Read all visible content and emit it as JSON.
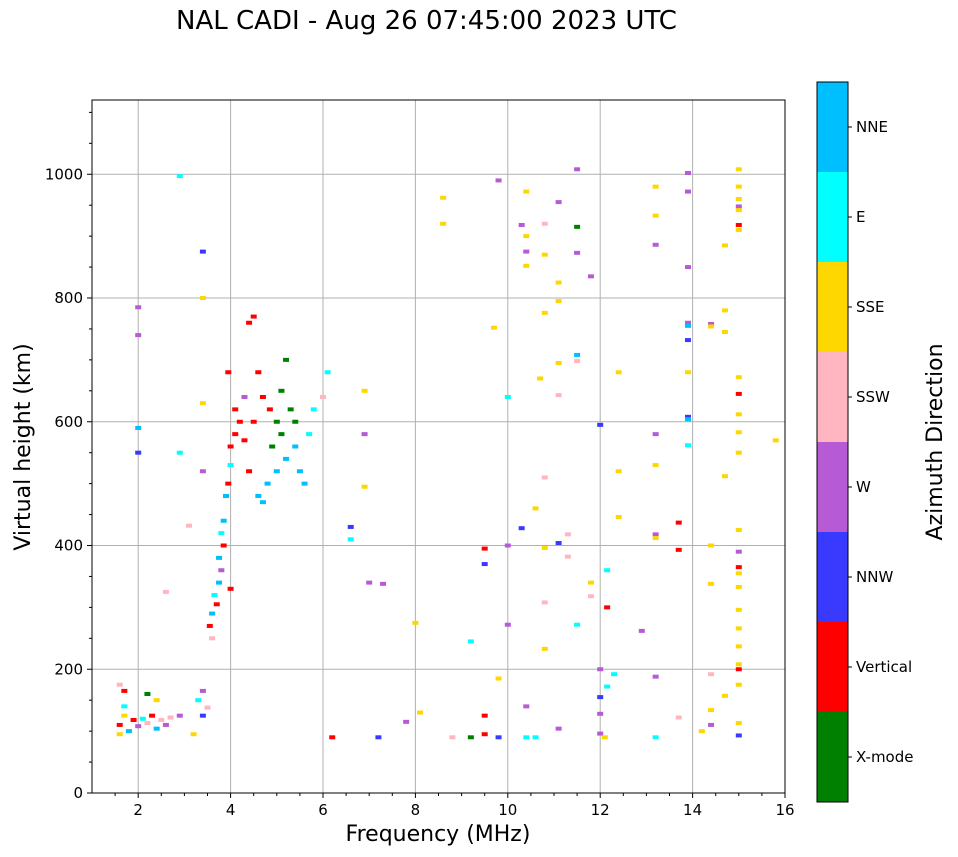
{
  "page_title": "NAL CADI - Aug 26 07:45:00 2023 UTC",
  "chart_data": {
    "type": "scatter",
    "title": "NAL CADI - Aug 26 07:45:00 2023 UTC",
    "xlabel": "Frequency (MHz)",
    "ylabel": "Virtual height (km)",
    "xlim": [
      1,
      16
    ],
    "ylim": [
      0,
      1120
    ],
    "xticks": [
      2,
      4,
      6,
      8,
      10,
      12,
      14,
      16
    ],
    "yticks": [
      0,
      200,
      400,
      600,
      800,
      1000
    ],
    "grid": true,
    "colorbar": {
      "label": "Azimuth Direction",
      "categories": [
        {
          "name": "X-mode",
          "color": "#008000"
        },
        {
          "name": "Vertical",
          "color": "#ff0000"
        },
        {
          "name": "NNW",
          "color": "#3a3aff"
        },
        {
          "name": "W",
          "color": "#b65ad6"
        },
        {
          "name": "SSW",
          "color": "#ffb6c1"
        },
        {
          "name": "SSE",
          "color": "#ffd700"
        },
        {
          "name": "E",
          "color": "#00ffff"
        },
        {
          "name": "NNE",
          "color": "#00bfff"
        }
      ]
    },
    "points": [
      {
        "f": 2.0,
        "h": 785,
        "c": "W"
      },
      {
        "f": 2.0,
        "h": 740,
        "c": "W"
      },
      {
        "f": 2.0,
        "h": 590,
        "c": "NNE"
      },
      {
        "f": 2.0,
        "h": 550,
        "c": "NNW"
      },
      {
        "f": 2.9,
        "h": 997,
        "c": "E"
      },
      {
        "f": 3.4,
        "h": 875,
        "c": "NNW"
      },
      {
        "f": 3.4,
        "h": 800,
        "c": "SSE"
      },
      {
        "f": 3.4,
        "h": 630,
        "c": "SSE"
      },
      {
        "f": 2.9,
        "h": 550,
        "c": "E"
      },
      {
        "f": 3.4,
        "h": 520,
        "c": "W"
      },
      {
        "f": 3.1,
        "h": 432,
        "c": "SSW"
      },
      {
        "f": 2.6,
        "h": 325,
        "c": "SSW"
      },
      {
        "f": 1.6,
        "h": 110,
        "c": "Vertical"
      },
      {
        "f": 1.7,
        "h": 125,
        "c": "SSE"
      },
      {
        "f": 1.8,
        "h": 100,
        "c": "NNE"
      },
      {
        "f": 1.9,
        "h": 118,
        "c": "Vertical"
      },
      {
        "f": 2.0,
        "h": 108,
        "c": "W"
      },
      {
        "f": 2.1,
        "h": 120,
        "c": "E"
      },
      {
        "f": 2.2,
        "h": 113,
        "c": "SSW"
      },
      {
        "f": 2.3,
        "h": 125,
        "c": "Vertical"
      },
      {
        "f": 2.4,
        "h": 104,
        "c": "NNE"
      },
      {
        "f": 2.5,
        "h": 118,
        "c": "SSW"
      },
      {
        "f": 2.6,
        "h": 110,
        "c": "W"
      },
      {
        "f": 2.7,
        "h": 122,
        "c": "SSW"
      },
      {
        "f": 2.9,
        "h": 125,
        "c": "W"
      },
      {
        "f": 1.6,
        "h": 95,
        "c": "SSE"
      },
      {
        "f": 1.7,
        "h": 140,
        "c": "E"
      },
      {
        "f": 1.6,
        "h": 175,
        "c": "SSW"
      },
      {
        "f": 1.7,
        "h": 165,
        "c": "Vertical"
      },
      {
        "f": 2.2,
        "h": 160,
        "c": "X-mode"
      },
      {
        "f": 2.4,
        "h": 150,
        "c": "SSE"
      },
      {
        "f": 3.3,
        "h": 150,
        "c": "E"
      },
      {
        "f": 3.4,
        "h": 165,
        "c": "W"
      },
      {
        "f": 3.5,
        "h": 138,
        "c": "SSW"
      },
      {
        "f": 3.4,
        "h": 125,
        "c": "NNW"
      },
      {
        "f": 3.2,
        "h": 95,
        "c": "SSE"
      },
      {
        "f": 3.6,
        "h": 250,
        "c": "SSW"
      },
      {
        "f": 3.55,
        "h": 270,
        "c": "Vertical"
      },
      {
        "f": 3.6,
        "h": 290,
        "c": "NNE"
      },
      {
        "f": 3.7,
        "h": 305,
        "c": "Vertical"
      },
      {
        "f": 3.65,
        "h": 320,
        "c": "E"
      },
      {
        "f": 3.75,
        "h": 340,
        "c": "NNE"
      },
      {
        "f": 3.8,
        "h": 360,
        "c": "W"
      },
      {
        "f": 3.75,
        "h": 380,
        "c": "NNE"
      },
      {
        "f": 3.85,
        "h": 400,
        "c": "Vertical"
      },
      {
        "f": 3.8,
        "h": 420,
        "c": "E"
      },
      {
        "f": 3.85,
        "h": 440,
        "c": "NNE"
      },
      {
        "f": 4.0,
        "h": 330,
        "c": "Vertical"
      },
      {
        "f": 3.9,
        "h": 480,
        "c": "NNE"
      },
      {
        "f": 3.95,
        "h": 500,
        "c": "Vertical"
      },
      {
        "f": 4.0,
        "h": 530,
        "c": "E"
      },
      {
        "f": 4.0,
        "h": 560,
        "c": "Vertical"
      },
      {
        "f": 4.1,
        "h": 580,
        "c": "Vertical"
      },
      {
        "f": 4.2,
        "h": 600,
        "c": "Vertical"
      },
      {
        "f": 4.1,
        "h": 620,
        "c": "Vertical"
      },
      {
        "f": 4.3,
        "h": 570,
        "c": "Vertical"
      },
      {
        "f": 3.95,
        "h": 680,
        "c": "Vertical"
      },
      {
        "f": 4.3,
        "h": 640,
        "c": "W"
      },
      {
        "f": 4.4,
        "h": 520,
        "c": "Vertical"
      },
      {
        "f": 4.5,
        "h": 600,
        "c": "Vertical"
      },
      {
        "f": 4.6,
        "h": 680,
        "c": "Vertical"
      },
      {
        "f": 4.7,
        "h": 640,
        "c": "Vertical"
      },
      {
        "f": 4.4,
        "h": 760,
        "c": "Vertical"
      },
      {
        "f": 4.5,
        "h": 770,
        "c": "Vertical"
      },
      {
        "f": 4.6,
        "h": 480,
        "c": "NNE"
      },
      {
        "f": 4.7,
        "h": 470,
        "c": "NNE"
      },
      {
        "f": 4.8,
        "h": 500,
        "c": "NNE"
      },
      {
        "f": 4.9,
        "h": 560,
        "c": "X-mode"
      },
      {
        "f": 5.0,
        "h": 600,
        "c": "X-mode"
      },
      {
        "f": 5.1,
        "h": 650,
        "c": "X-mode"
      },
      {
        "f": 5.2,
        "h": 700,
        "c": "X-mode"
      },
      {
        "f": 5.3,
        "h": 620,
        "c": "X-mode"
      },
      {
        "f": 5.0,
        "h": 520,
        "c": "NNE"
      },
      {
        "f": 5.2,
        "h": 540,
        "c": "NNE"
      },
      {
        "f": 5.4,
        "h": 560,
        "c": "NNE"
      },
      {
        "f": 5.5,
        "h": 520,
        "c": "NNE"
      },
      {
        "f": 5.6,
        "h": 500,
        "c": "NNE"
      },
      {
        "f": 5.7,
        "h": 580,
        "c": "E"
      },
      {
        "f": 5.8,
        "h": 620,
        "c": "E"
      },
      {
        "f": 6.0,
        "h": 640,
        "c": "SSW"
      },
      {
        "f": 6.1,
        "h": 680,
        "c": "E"
      },
      {
        "f": 5.4,
        "h": 600,
        "c": "X-mode"
      },
      {
        "f": 5.1,
        "h": 580,
        "c": "X-mode"
      },
      {
        "f": 4.85,
        "h": 620,
        "c": "Vertical"
      },
      {
        "f": 6.6,
        "h": 430,
        "c": "NNW"
      },
      {
        "f": 6.6,
        "h": 410,
        "c": "E"
      },
      {
        "f": 6.9,
        "h": 650,
        "c": "SSE"
      },
      {
        "f": 6.9,
        "h": 580,
        "c": "W"
      },
      {
        "f": 6.9,
        "h": 495,
        "c": "SSE"
      },
      {
        "f": 7.0,
        "h": 340,
        "c": "W"
      },
      {
        "f": 7.3,
        "h": 338,
        "c": "W"
      },
      {
        "f": 6.2,
        "h": 90,
        "c": "Vertical"
      },
      {
        "f": 7.2,
        "h": 90,
        "c": "NNW"
      },
      {
        "f": 8.0,
        "h": 275,
        "c": "SSE"
      },
      {
        "f": 8.1,
        "h": 130,
        "c": "SSE"
      },
      {
        "f": 7.8,
        "h": 115,
        "c": "W"
      },
      {
        "f": 8.8,
        "h": 90,
        "c": "SSW"
      },
      {
        "f": 9.2,
        "h": 90,
        "c": "X-mode"
      },
      {
        "f": 9.5,
        "h": 95,
        "c": "Vertical"
      },
      {
        "f": 9.5,
        "h": 125,
        "c": "Vertical"
      },
      {
        "f": 9.2,
        "h": 245,
        "c": "E"
      },
      {
        "f": 9.5,
        "h": 395,
        "c": "Vertical"
      },
      {
        "f": 9.5,
        "h": 370,
        "c": "NNW"
      },
      {
        "f": 8.6,
        "h": 962,
        "c": "SSE"
      },
      {
        "f": 8.6,
        "h": 920,
        "c": "SSE"
      },
      {
        "f": 9.7,
        "h": 752,
        "c": "SSE"
      },
      {
        "f": 9.8,
        "h": 185,
        "c": "SSE"
      },
      {
        "f": 9.8,
        "h": 90,
        "c": "NNW"
      },
      {
        "f": 10.0,
        "h": 400,
        "c": "W"
      },
      {
        "f": 10.0,
        "h": 272,
        "c": "W"
      },
      {
        "f": 10.0,
        "h": 640,
        "c": "E"
      },
      {
        "f": 9.8,
        "h": 990,
        "c": "W"
      },
      {
        "f": 10.3,
        "h": 918,
        "c": "W"
      },
      {
        "f": 10.4,
        "h": 875,
        "c": "W"
      },
      {
        "f": 10.4,
        "h": 972,
        "c": "SSE"
      },
      {
        "f": 10.4,
        "h": 900,
        "c": "SSE"
      },
      {
        "f": 10.4,
        "h": 852,
        "c": "SSE"
      },
      {
        "f": 10.3,
        "h": 428,
        "c": "NNW"
      },
      {
        "f": 10.4,
        "h": 140,
        "c": "W"
      },
      {
        "f": 10.4,
        "h": 90,
        "c": "E"
      },
      {
        "f": 10.6,
        "h": 90,
        "c": "E"
      },
      {
        "f": 10.6,
        "h": 460,
        "c": "SSE"
      },
      {
        "f": 10.7,
        "h": 670,
        "c": "SSE"
      },
      {
        "f": 10.8,
        "h": 920,
        "c": "SSW"
      },
      {
        "f": 10.8,
        "h": 870,
        "c": "SSE"
      },
      {
        "f": 10.8,
        "h": 776,
        "c": "SSE"
      },
      {
        "f": 10.8,
        "h": 510,
        "c": "SSW"
      },
      {
        "f": 10.8,
        "h": 396,
        "c": "SSE"
      },
      {
        "f": 10.8,
        "h": 308,
        "c": "SSW"
      },
      {
        "f": 10.8,
        "h": 233,
        "c": "SSE"
      },
      {
        "f": 11.1,
        "h": 955,
        "c": "W"
      },
      {
        "f": 11.1,
        "h": 825,
        "c": "SSE"
      },
      {
        "f": 11.1,
        "h": 795,
        "c": "SSE"
      },
      {
        "f": 11.1,
        "h": 695,
        "c": "SSE"
      },
      {
        "f": 11.1,
        "h": 643,
        "c": "SSW"
      },
      {
        "f": 11.1,
        "h": 404,
        "c": "NNW"
      },
      {
        "f": 11.1,
        "h": 104,
        "c": "W"
      },
      {
        "f": 11.3,
        "h": 418,
        "c": "SSW"
      },
      {
        "f": 11.3,
        "h": 382,
        "c": "SSW"
      },
      {
        "f": 11.5,
        "h": 708,
        "c": "NNE"
      },
      {
        "f": 11.5,
        "h": 698,
        "c": "SSW"
      },
      {
        "f": 11.5,
        "h": 1008,
        "c": "W"
      },
      {
        "f": 11.5,
        "h": 915,
        "c": "X-mode"
      },
      {
        "f": 11.5,
        "h": 873,
        "c": "W"
      },
      {
        "f": 11.5,
        "h": 272,
        "c": "E"
      },
      {
        "f": 11.8,
        "h": 835,
        "c": "W"
      },
      {
        "f": 11.8,
        "h": 340,
        "c": "SSE"
      },
      {
        "f": 11.8,
        "h": 318,
        "c": "SSW"
      },
      {
        "f": 12.0,
        "h": 595,
        "c": "NNW"
      },
      {
        "f": 12.0,
        "h": 200,
        "c": "W"
      },
      {
        "f": 12.0,
        "h": 155,
        "c": "NNW"
      },
      {
        "f": 12.0,
        "h": 128,
        "c": "W"
      },
      {
        "f": 12.0,
        "h": 96,
        "c": "W"
      },
      {
        "f": 12.1,
        "h": 90,
        "c": "SSE"
      },
      {
        "f": 12.15,
        "h": 360,
        "c": "E"
      },
      {
        "f": 12.15,
        "h": 300,
        "c": "Vertical"
      },
      {
        "f": 12.15,
        "h": 172,
        "c": "E"
      },
      {
        "f": 12.3,
        "h": 192,
        "c": "E"
      },
      {
        "f": 12.4,
        "h": 680,
        "c": "SSE"
      },
      {
        "f": 12.4,
        "h": 520,
        "c": "SSE"
      },
      {
        "f": 12.4,
        "h": 446,
        "c": "SSE"
      },
      {
        "f": 12.9,
        "h": 262,
        "c": "W"
      },
      {
        "f": 13.2,
        "h": 980,
        "c": "SSE"
      },
      {
        "f": 13.2,
        "h": 933,
        "c": "SSE"
      },
      {
        "f": 13.2,
        "h": 886,
        "c": "W"
      },
      {
        "f": 13.2,
        "h": 580,
        "c": "W"
      },
      {
        "f": 13.2,
        "h": 530,
        "c": "SSE"
      },
      {
        "f": 13.2,
        "h": 418,
        "c": "W"
      },
      {
        "f": 13.2,
        "h": 412,
        "c": "SSE"
      },
      {
        "f": 13.2,
        "h": 188,
        "c": "W"
      },
      {
        "f": 13.2,
        "h": 90,
        "c": "E"
      },
      {
        "f": 13.7,
        "h": 437,
        "c": "Vertical"
      },
      {
        "f": 13.7,
        "h": 393,
        "c": "Vertical"
      },
      {
        "f": 13.7,
        "h": 122,
        "c": "SSW"
      },
      {
        "f": 13.9,
        "h": 1002,
        "c": "W"
      },
      {
        "f": 13.9,
        "h": 972,
        "c": "W"
      },
      {
        "f": 13.9,
        "h": 850,
        "c": "W"
      },
      {
        "f": 13.9,
        "h": 760,
        "c": "W"
      },
      {
        "f": 13.9,
        "h": 755,
        "c": "NNE"
      },
      {
        "f": 13.9,
        "h": 732,
        "c": "NNW"
      },
      {
        "f": 13.9,
        "h": 680,
        "c": "SSE"
      },
      {
        "f": 13.9,
        "h": 608,
        "c": "NNW"
      },
      {
        "f": 13.9,
        "h": 604,
        "c": "NNE"
      },
      {
        "f": 13.9,
        "h": 562,
        "c": "E"
      },
      {
        "f": 14.2,
        "h": 100,
        "c": "SSE"
      },
      {
        "f": 14.4,
        "h": 758,
        "c": "W"
      },
      {
        "f": 14.4,
        "h": 754,
        "c": "SSE"
      },
      {
        "f": 14.4,
        "h": 400,
        "c": "SSE"
      },
      {
        "f": 14.4,
        "h": 338,
        "c": "SSE"
      },
      {
        "f": 14.4,
        "h": 192,
        "c": "SSW"
      },
      {
        "f": 14.4,
        "h": 134,
        "c": "SSE"
      },
      {
        "f": 14.4,
        "h": 110,
        "c": "W"
      },
      {
        "f": 14.7,
        "h": 885,
        "c": "SSE"
      },
      {
        "f": 14.7,
        "h": 780,
        "c": "SSE"
      },
      {
        "f": 14.7,
        "h": 745,
        "c": "SSE"
      },
      {
        "f": 14.7,
        "h": 512,
        "c": "SSE"
      },
      {
        "f": 14.7,
        "h": 157,
        "c": "SSE"
      },
      {
        "f": 15.0,
        "h": 1008,
        "c": "SSE"
      },
      {
        "f": 15.0,
        "h": 980,
        "c": "SSE"
      },
      {
        "f": 15.0,
        "h": 960,
        "c": "SSE"
      },
      {
        "f": 15.0,
        "h": 948,
        "c": "W"
      },
      {
        "f": 15.0,
        "h": 942,
        "c": "SSE"
      },
      {
        "f": 15.0,
        "h": 918,
        "c": "Vertical"
      },
      {
        "f": 15.0,
        "h": 910,
        "c": "SSE"
      },
      {
        "f": 15.0,
        "h": 672,
        "c": "SSE"
      },
      {
        "f": 15.0,
        "h": 645,
        "c": "Vertical"
      },
      {
        "f": 15.0,
        "h": 612,
        "c": "SSE"
      },
      {
        "f": 15.0,
        "h": 583,
        "c": "SSE"
      },
      {
        "f": 15.0,
        "h": 550,
        "c": "SSE"
      },
      {
        "f": 15.0,
        "h": 425,
        "c": "SSE"
      },
      {
        "f": 15.0,
        "h": 390,
        "c": "W"
      },
      {
        "f": 15.0,
        "h": 365,
        "c": "Vertical"
      },
      {
        "f": 15.0,
        "h": 355,
        "c": "SSE"
      },
      {
        "f": 15.0,
        "h": 333,
        "c": "SSE"
      },
      {
        "f": 15.0,
        "h": 296,
        "c": "SSE"
      },
      {
        "f": 15.0,
        "h": 266,
        "c": "SSE"
      },
      {
        "f": 15.0,
        "h": 237,
        "c": "SSE"
      },
      {
        "f": 15.0,
        "h": 208,
        "c": "SSE"
      },
      {
        "f": 15.0,
        "h": 200,
        "c": "Vertical"
      },
      {
        "f": 15.0,
        "h": 175,
        "c": "SSE"
      },
      {
        "f": 15.0,
        "h": 113,
        "c": "SSE"
      },
      {
        "f": 15.0,
        "h": 93,
        "c": "NNW"
      },
      {
        "f": 15.8,
        "h": 570,
        "c": "SSE"
      }
    ]
  }
}
